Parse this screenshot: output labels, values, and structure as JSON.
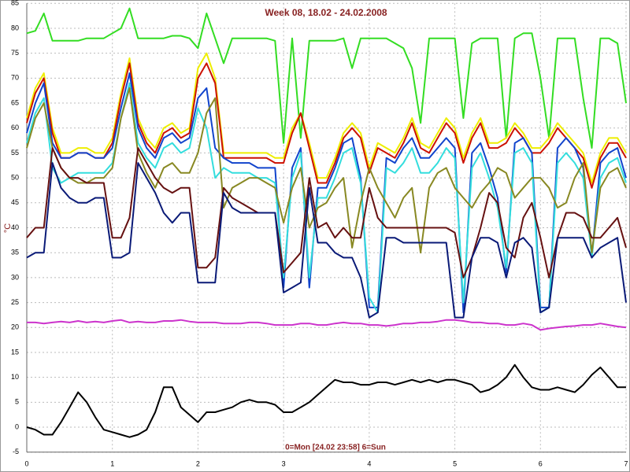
{
  "chart_data": {
    "type": "line",
    "title": "Week 08, 18.02 - 24.02.2008",
    "y_label": "°C",
    "annotation": "0=Mon [24.02 23:58] 6=Sun",
    "xlim": [
      0,
      7
    ],
    "xticks": [
      0,
      1,
      2,
      3,
      4,
      5,
      6,
      7
    ],
    "ylim": [
      -5,
      85
    ],
    "yticks": [
      -5,
      0,
      5,
      10,
      15,
      20,
      25,
      30,
      35,
      40,
      45,
      50,
      55,
      60,
      65,
      70,
      75,
      80,
      85
    ],
    "grid": true,
    "x": [
      0,
      0.1,
      0.2,
      0.3,
      0.4,
      0.5,
      0.6,
      0.7,
      0.8,
      0.9,
      1,
      1.1,
      1.2,
      1.3,
      1.4,
      1.5,
      1.6,
      1.7,
      1.8,
      1.9,
      2,
      2.1,
      2.2,
      2.3,
      2.4,
      2.5,
      2.6,
      2.7,
      2.8,
      2.9,
      3,
      3.1,
      3.2,
      3.3,
      3.4,
      3.5,
      3.6,
      3.7,
      3.8,
      3.9,
      4,
      4.1,
      4.2,
      4.3,
      4.4,
      4.5,
      4.6,
      4.7,
      4.8,
      4.9,
      5,
      5.1,
      5.2,
      5.3,
      5.4,
      5.5,
      5.6,
      5.7,
      5.8,
      5.9,
      6,
      6.1,
      6.2,
      6.3,
      6.4,
      6.5,
      6.6,
      6.7,
      6.8,
      6.9,
      7
    ],
    "series": [
      {
        "color": "#33dd22",
        "values": [
          79,
          79.5,
          83,
          77.5,
          77.5,
          77.5,
          77.5,
          78,
          78,
          78,
          79,
          80,
          84,
          78,
          78,
          78,
          78,
          78.5,
          78.5,
          78,
          76,
          83,
          78,
          73,
          78,
          78,
          78,
          78,
          78,
          77.5,
          57,
          78,
          58,
          77.5,
          77.5,
          77.5,
          77.5,
          78,
          72,
          78,
          78,
          78,
          78,
          77,
          76,
          72,
          61,
          78,
          78,
          78,
          78,
          62,
          77,
          78,
          78,
          78,
          58,
          78,
          79,
          79,
          70,
          58,
          78,
          78,
          78,
          66,
          56,
          78,
          78,
          77,
          65
        ]
      },
      {
        "color": "#eeee00",
        "values": [
          62,
          68,
          71,
          60,
          55,
          55,
          56,
          56,
          55,
          55,
          58,
          67,
          74,
          62,
          58,
          56,
          60,
          61,
          59,
          60,
          72,
          75,
          70,
          55,
          55,
          55,
          55,
          55,
          55,
          54,
          54,
          60,
          63,
          57,
          50,
          50,
          54,
          59,
          61,
          59,
          52,
          57,
          56,
          55,
          58,
          62,
          57,
          56,
          59,
          62,
          60,
          54,
          59,
          62,
          57,
          57,
          58,
          61,
          59,
          56,
          56,
          58,
          61,
          59,
          57,
          55,
          49,
          55,
          58,
          58,
          55
        ]
      },
      {
        "color": "#cc1100",
        "values": [
          61,
          67,
          70,
          59,
          54,
          54,
          55,
          55,
          54,
          54,
          57,
          66,
          73,
          61,
          57,
          55,
          59,
          60,
          58,
          59,
          70,
          73,
          69,
          54,
          54,
          54,
          54,
          54,
          54,
          53,
          53,
          59,
          63,
          56,
          49,
          49,
          53,
          58,
          60,
          58,
          51,
          56,
          55,
          54,
          57,
          61,
          56,
          55,
          58,
          61,
          59,
          53,
          58,
          61,
          56,
          56,
          57,
          60,
          58,
          55,
          55,
          57,
          60,
          58,
          56,
          54,
          48,
          54,
          57,
          57,
          54
        ]
      },
      {
        "color": "#1144cc",
        "values": [
          59,
          65,
          69,
          57,
          54,
          54,
          55,
          55,
          54,
          54,
          56,
          64,
          71,
          60,
          56,
          54,
          58,
          59,
          57,
          58,
          66,
          68,
          56,
          54,
          53,
          53,
          53,
          52,
          52,
          52,
          28,
          52,
          56,
          28,
          48,
          48,
          52,
          57,
          58,
          50,
          24,
          24,
          54,
          53,
          56,
          58,
          54,
          54,
          56,
          58,
          56,
          23,
          55,
          57,
          52,
          46,
          31,
          57,
          58,
          55,
          24,
          24,
          56,
          58,
          56,
          52,
          34,
          53,
          55,
          56,
          50
        ]
      },
      {
        "color": "#33dddd",
        "values": [
          57,
          63,
          66,
          52,
          49,
          50,
          51,
          51,
          51,
          51,
          53,
          62,
          69,
          57,
          54,
          52,
          56,
          57,
          55,
          56,
          64,
          60,
          50,
          52,
          51,
          51,
          51,
          50,
          50,
          49,
          30,
          50,
          55,
          30,
          46,
          46,
          50,
          55,
          56,
          49,
          26,
          23,
          52,
          51,
          53,
          56,
          51,
          51,
          53,
          56,
          54,
          25,
          52,
          55,
          50,
          44,
          32,
          55,
          56,
          53,
          23,
          24,
          53,
          55,
          53,
          50,
          34,
          50,
          53,
          54,
          49
        ]
      },
      {
        "color": "#888822",
        "values": [
          56,
          62,
          65,
          56,
          52,
          50,
          49,
          49,
          50,
          50,
          52,
          62,
          68,
          55,
          51,
          48,
          52,
          53,
          51,
          51,
          55,
          63,
          66,
          44,
          48,
          49,
          50,
          50,
          49,
          48,
          41,
          48,
          52,
          40,
          44,
          45,
          48,
          50,
          36,
          45,
          52,
          48,
          45,
          42,
          46,
          48,
          35,
          48,
          51,
          52,
          48,
          46,
          44,
          47,
          49,
          52,
          51,
          46,
          48,
          50,
          50,
          48,
          44,
          45,
          50,
          53,
          35,
          48,
          51,
          52,
          48
        ]
      },
      {
        "color": "#661111",
        "values": [
          38,
          40,
          40,
          56,
          52,
          50,
          50,
          49,
          49,
          49,
          38,
          38,
          42,
          56,
          53,
          50,
          48,
          47,
          48,
          48,
          32,
          32,
          34,
          48,
          46,
          45,
          44,
          43,
          43,
          43,
          31,
          33,
          35,
          50,
          40,
          41,
          38,
          40,
          38,
          38,
          48,
          42,
          40,
          40,
          40,
          40,
          40,
          40,
          40,
          40,
          39,
          30,
          34,
          40,
          47,
          45,
          36,
          34,
          42,
          45,
          38,
          30,
          38,
          43,
          43,
          42,
          38,
          38,
          40,
          42,
          36
        ]
      },
      {
        "color": "#0a1a77",
        "values": [
          34,
          35,
          35,
          53,
          48,
          46,
          45,
          45,
          46,
          46,
          34,
          34,
          35,
          53,
          50,
          47,
          43,
          41,
          43,
          43,
          29,
          29,
          29,
          47,
          44,
          43,
          43,
          43,
          43,
          43,
          27,
          28,
          29,
          48,
          37,
          37,
          35,
          34,
          34,
          30,
          22,
          23,
          38,
          38,
          37,
          37,
          37,
          37,
          37,
          37,
          22,
          22,
          34,
          38,
          38,
          37,
          30,
          37,
          38,
          36,
          23,
          24,
          38,
          38,
          38,
          38,
          34,
          36,
          37,
          38,
          25
        ]
      },
      {
        "color": "#cc33cc",
        "values": [
          21,
          21,
          20.8,
          21,
          21.2,
          21,
          21.3,
          21,
          21.2,
          21,
          21.3,
          21.5,
          21,
          21.2,
          21,
          21,
          21.3,
          21.3,
          21.5,
          21.2,
          21,
          21,
          21,
          20.8,
          20.8,
          20.8,
          21,
          21,
          20.8,
          20.5,
          20.5,
          20.5,
          20.8,
          20.8,
          20.5,
          20.5,
          20.8,
          21,
          20.8,
          20.8,
          20.5,
          20.5,
          20.3,
          20.5,
          20.8,
          20.8,
          21,
          21,
          21.2,
          21.5,
          21.5,
          21.3,
          21,
          21,
          20.8,
          20.8,
          20.5,
          20.5,
          20.8,
          20.5,
          19.5,
          19.8,
          20,
          20.2,
          20.3,
          20.5,
          20.5,
          20.8,
          20.5,
          20.2,
          20
        ]
      },
      {
        "color": "#000000",
        "values": [
          0,
          -0.5,
          -1.5,
          -1.5,
          1,
          4,
          7,
          5,
          2,
          -0.5,
          -1,
          -1.5,
          -2,
          -1.5,
          -0.5,
          3,
          8,
          8,
          4,
          2.5,
          1,
          3,
          3,
          3.5,
          4,
          5,
          5.5,
          5,
          5,
          4.5,
          3,
          3,
          4,
          5,
          6.5,
          8,
          9.5,
          9,
          9,
          8.5,
          8.5,
          9,
          9,
          8.5,
          9,
          9.5,
          9,
          9.5,
          9,
          9.5,
          9.5,
          9,
          8.5,
          7,
          7.5,
          8.5,
          10,
          12.5,
          10,
          8,
          7.5,
          7.5,
          8,
          7.5,
          7,
          8.5,
          10.5,
          12,
          10,
          8,
          8
        ]
      }
    ]
  }
}
